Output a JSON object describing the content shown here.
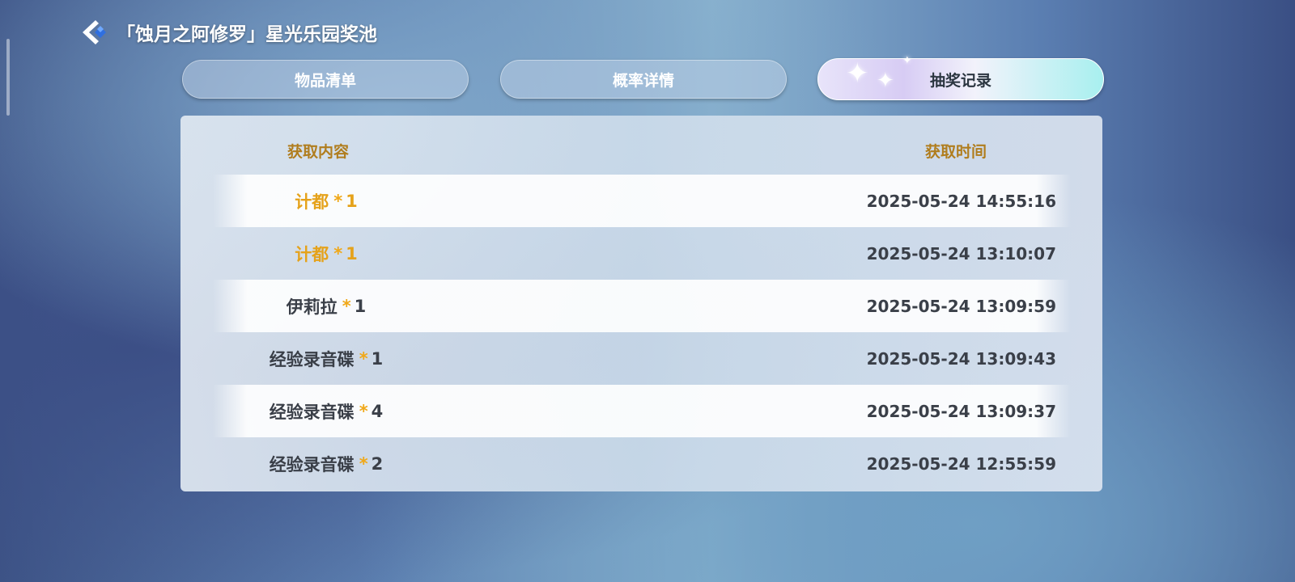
{
  "header": {
    "title": "「蚀月之阿修罗」星光乐园奖池",
    "back_icon": "back-chevron-icon"
  },
  "tabs": [
    {
      "label": "物品清单",
      "active": false
    },
    {
      "label": "概率详情",
      "active": false
    },
    {
      "label": "抽奖记录",
      "active": true
    }
  ],
  "table": {
    "columns": [
      "获取内容",
      "获取时间"
    ],
    "rows": [
      {
        "item": "计都",
        "sep": "*",
        "qty": "1",
        "rarity": "gold",
        "time": "2025-05-24 14:55:16"
      },
      {
        "item": "计都",
        "sep": "*",
        "qty": "1",
        "rarity": "gold",
        "time": "2025-05-24 13:10:07"
      },
      {
        "item": "伊莉拉",
        "sep": "*",
        "qty": "1",
        "rarity": "normal",
        "time": "2025-05-24 13:09:59"
      },
      {
        "item": "经验录音碟",
        "sep": "*",
        "qty": "1",
        "rarity": "normal",
        "time": "2025-05-24 13:09:43"
      },
      {
        "item": "经验录音碟",
        "sep": "*",
        "qty": "4",
        "rarity": "normal",
        "time": "2025-05-24 13:09:37"
      },
      {
        "item": "经验录音碟",
        "sep": "*",
        "qty": "2",
        "rarity": "normal",
        "time": "2025-05-24 12:55:59"
      }
    ]
  },
  "colors": {
    "gold_item": "#e5a21a",
    "header_text": "#b07d1e",
    "star": "#f0a818"
  }
}
